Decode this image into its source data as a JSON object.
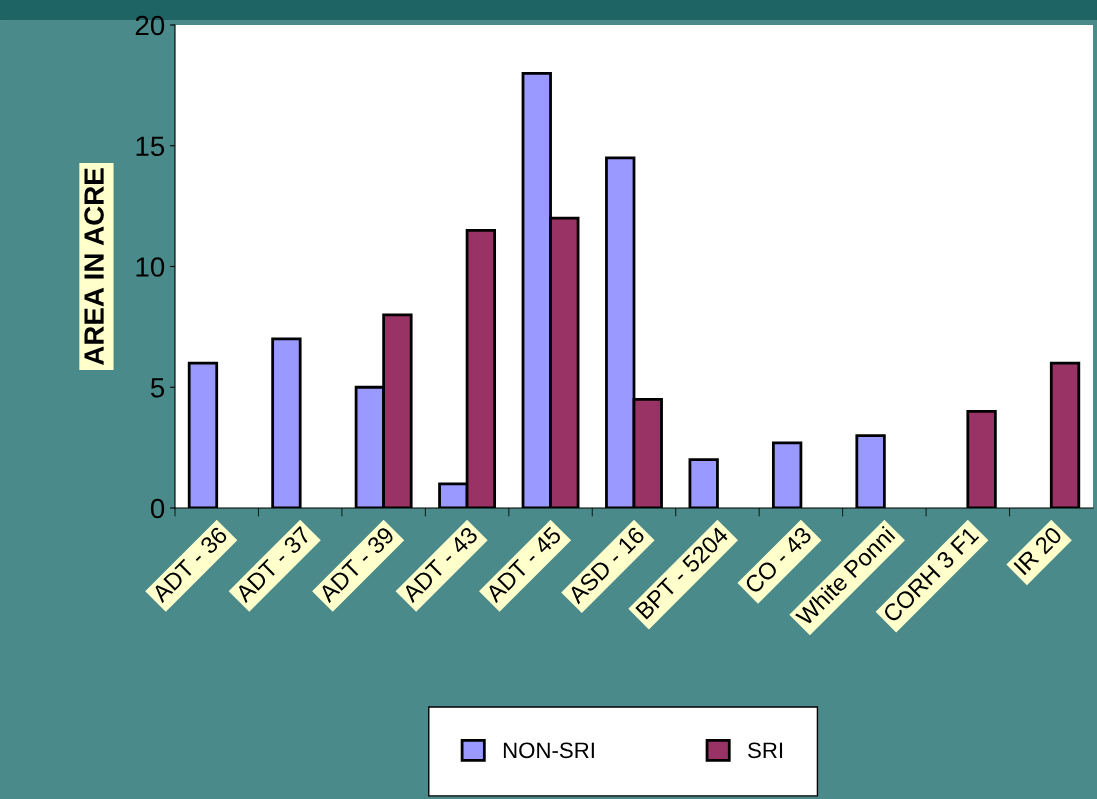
{
  "chart_data": {
    "type": "bar",
    "ylabel": "AREA IN ACRE",
    "categories": [
      "ADT - 36",
      "ADT - 37",
      "ADT - 39",
      "ADT - 43",
      "ADT - 45",
      "ASD - 16",
      "BPT - 5204",
      "CO - 43",
      "White Ponni",
      "CORH 3 F1",
      "IR 20"
    ],
    "series": [
      {
        "name": "NON-SRI",
        "color": "#9999ff",
        "values": [
          6,
          7,
          5,
          1,
          18,
          14.5,
          2,
          2.7,
          3,
          null,
          null
        ]
      },
      {
        "name": "SRI",
        "color": "#993366",
        "values": [
          null,
          null,
          8,
          11.5,
          12,
          4.5,
          null,
          null,
          null,
          4,
          6
        ]
      }
    ],
    "ylim": [
      0,
      20
    ],
    "yticks": [
      0,
      5,
      10,
      15,
      20
    ],
    "grid": false,
    "legend": "bottom"
  }
}
